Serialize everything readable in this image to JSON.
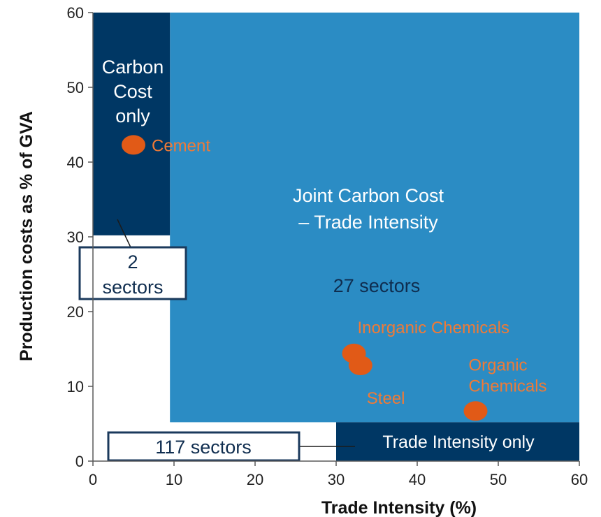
{
  "chart_data": {
    "type": "scatter",
    "title": "",
    "xlabel": "Trade Intensity (%)",
    "ylabel": "Production costs as % of GVA",
    "xlim": [
      0,
      60
    ],
    "ylim": [
      0,
      60
    ],
    "xticks": [
      0,
      10,
      20,
      30,
      40,
      50,
      60
    ],
    "yticks": [
      0,
      10,
      20,
      30,
      40,
      50,
      60
    ],
    "grid": false,
    "regions": [
      {
        "name": "Joint Carbon Cost – Trade Intensity",
        "label_lines": [
          "Joint Carbon Cost",
          "– Trade Intensity"
        ],
        "x": [
          9.5,
          60
        ],
        "y": [
          5.2,
          60
        ],
        "color": "#2b8cc4",
        "text_color": "#ffffff"
      },
      {
        "name": "Carbon Cost only",
        "label_lines": [
          "Carbon",
          "Cost",
          "only"
        ],
        "x": [
          0,
          9.5
        ],
        "y": [
          30.2,
          60
        ],
        "color": "#003764",
        "text_color": "#ffffff"
      },
      {
        "name": "Trade Intensity only",
        "label_lines": [
          "Trade Intensity only"
        ],
        "x": [
          30,
          60
        ],
        "y": [
          0,
          5.2
        ],
        "color": "#003764",
        "text_color": "#ffffff"
      }
    ],
    "sector_counts": [
      {
        "text": "27 sectors",
        "lines": [
          "27 sectors"
        ]
      },
      {
        "text": "2 sectors",
        "lines": [
          "2",
          "sectors"
        ]
      },
      {
        "text": "117 sectors",
        "lines": [
          "117 sectors"
        ]
      }
    ],
    "points": [
      {
        "label": "Cement",
        "x": 5,
        "y": 42.3
      },
      {
        "label": "Inorganic Chemicals",
        "x": 32.2,
        "y": 14.4
      },
      {
        "label": "Steel",
        "x": 33,
        "y": 12.8
      },
      {
        "label": "Organic Chemicals",
        "label_lines": [
          "Organic",
          "Chemicals"
        ],
        "x": 47.2,
        "y": 6.7
      }
    ],
    "colors": {
      "point": "#e15a17",
      "point_label": "#f07a36",
      "count_text": "#0f2d4f",
      "box_border": "#1b3a5c",
      "axis": "#595959",
      "tick_text": "#222222"
    }
  }
}
